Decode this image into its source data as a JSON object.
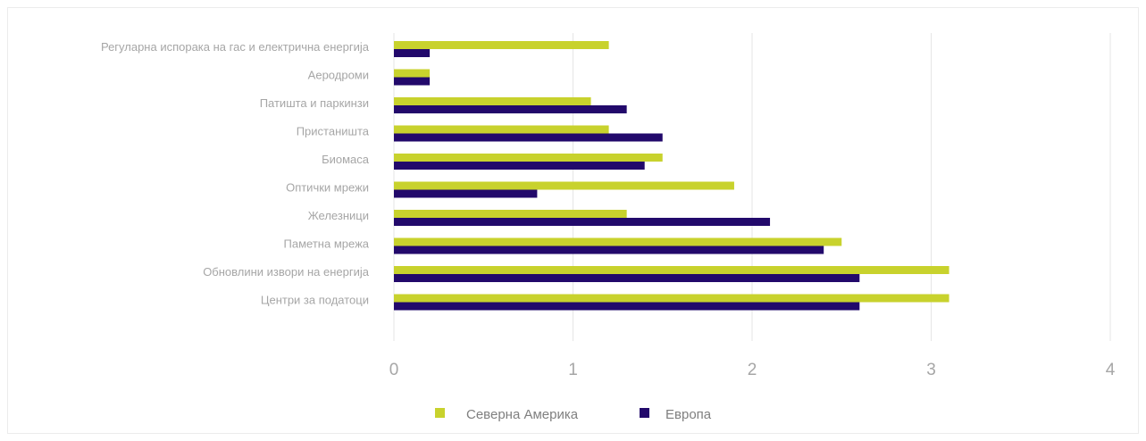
{
  "chart_data": {
    "type": "bar",
    "orientation": "horizontal",
    "categories": [
      "Центри за податоци",
      "Обновлини извори на енергија",
      "Паметна мрежа",
      "Железници",
      "Оптички мрежи",
      "Биомаса",
      "Пристаништа",
      "Патишта и паркинзи",
      "Аеродроми",
      "Регуларна испорака на гас и електрична енергија"
    ],
    "series": [
      {
        "name": "Северна Америка",
        "color": "#c8d22d",
        "values": [
          3.1,
          3.1,
          2.5,
          1.3,
          1.9,
          1.5,
          1.2,
          1.1,
          0.2,
          1.2
        ]
      },
      {
        "name": "Европа",
        "color": "#22096b",
        "values": [
          2.6,
          2.6,
          2.4,
          2.1,
          0.8,
          1.4,
          1.5,
          1.3,
          0.2,
          0.2
        ]
      }
    ],
    "xlim": [
      0,
      4
    ],
    "xticks": [
      "0",
      "1",
      "2",
      "3",
      "4"
    ],
    "grid": true,
    "legend": "bottom"
  }
}
